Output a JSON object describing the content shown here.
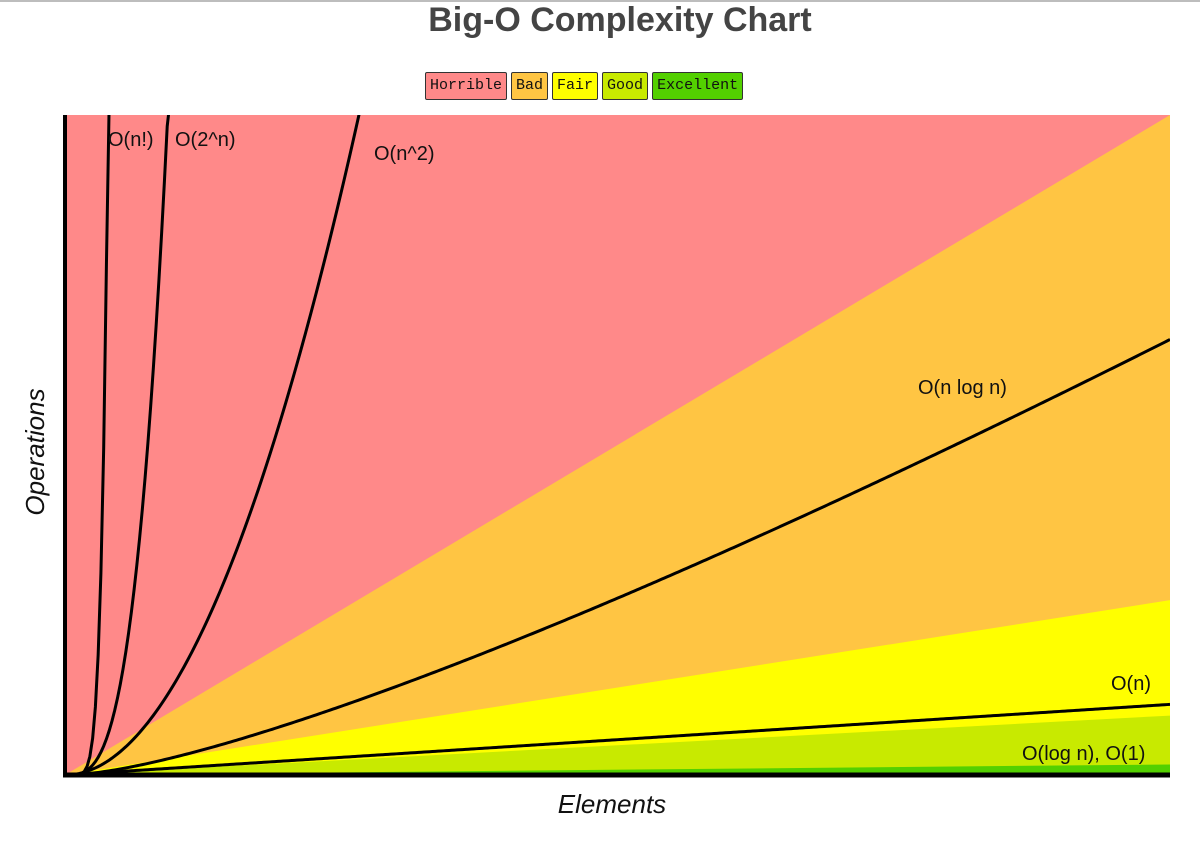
{
  "chart_data": {
    "type": "line",
    "title": "Big-O Complexity Chart",
    "xlabel": "Elements",
    "ylabel": "Operations",
    "xlim": [
      0,
      100
    ],
    "ylim": [
      0,
      1000
    ],
    "grid": false,
    "legend_position": "top-center",
    "legend": [
      {
        "label": "Horrible",
        "color": "#ff8989"
      },
      {
        "label": "Bad",
        "color": "#ffc543"
      },
      {
        "label": "Fair",
        "color": "#ffff00"
      },
      {
        "label": "Good",
        "color": "#c8ea00"
      },
      {
        "label": "Excellent",
        "color": "#53d000"
      }
    ],
    "regions": [
      {
        "label": "Horrible",
        "color": "#ff8989",
        "upper_y_at_xmax": 1000
      },
      {
        "label": "Bad",
        "color": "#ffc543",
        "upper_y_at_xmax": 1000
      },
      {
        "label": "Fair",
        "color": "#ffff00",
        "upper_y_at_xmax": 265
      },
      {
        "label": "Good",
        "color": "#c8ea00",
        "upper_y_at_xmax": 90
      },
      {
        "label": "Excellent",
        "color": "#53d000",
        "upper_y_at_xmax": 16
      }
    ],
    "series": [
      {
        "name": "O(n!)",
        "fn": "factorial"
      },
      {
        "name": "O(2^n)",
        "fn": "exp2"
      },
      {
        "name": "O(n^2)",
        "fn": "square"
      },
      {
        "name": "O(n log n)",
        "fn": "nlogn"
      },
      {
        "name": "O(n)",
        "fn": "linear"
      },
      {
        "name": "O(log n), O(1)",
        "fn": "flat"
      }
    ]
  }
}
